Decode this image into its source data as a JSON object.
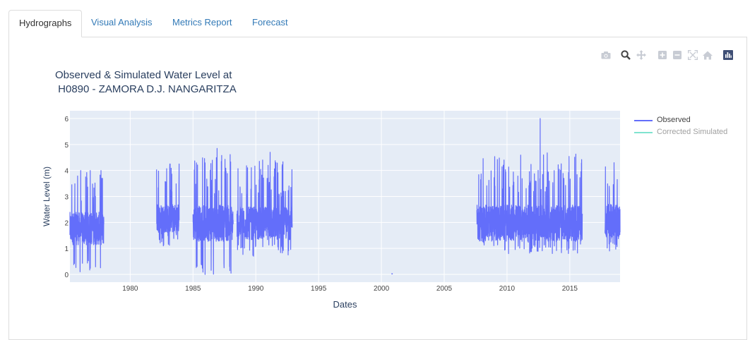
{
  "tabs": [
    {
      "label": "Hydrographs",
      "active": true
    },
    {
      "label": "Visual Analysis",
      "active": false
    },
    {
      "label": "Metrics Report",
      "active": false
    },
    {
      "label": "Forecast",
      "active": false
    }
  ],
  "modebar": [
    "camera-icon",
    "zoom-icon",
    "pan-icon",
    "zoom-in-icon",
    "zoom-out-icon",
    "autoscale-icon",
    "reset-axes-icon",
    "plotly-logo-icon"
  ],
  "colors": {
    "observed": "#636efa",
    "corrected": "#7fe3cf",
    "plot_bg": "#e5ecf6",
    "grid": "#ffffff",
    "title": "#2a3f5f"
  },
  "chart_data": {
    "type": "line",
    "title": "Observed & Simulated Water Level at\n H0890 - ZAMORA D.J. NANGARITZA",
    "xlabel": "Dates",
    "ylabel": "Water Level (m)",
    "xlim": [
      1975.2,
      2019.0
    ],
    "ylim": [
      -0.3,
      6.3
    ],
    "x_ticks": [
      "1980",
      "1985",
      "1990",
      "1995",
      "2000",
      "2005",
      "2010",
      "2015"
    ],
    "y_ticks": [
      "0",
      "1",
      "2",
      "3",
      "4",
      "5",
      "6"
    ],
    "legend_position": "top-right",
    "series": [
      {
        "name": "Observed",
        "segments": [
          {
            "start": 1975.2,
            "end": 1977.9,
            "base": 1.7,
            "spread": 0.9,
            "max": 4.0,
            "min": 0.1
          },
          {
            "start": 1982.1,
            "end": 1983.9,
            "base": 2.1,
            "spread": 0.8,
            "max": 4.25,
            "min": 1.1
          },
          {
            "start": 1985.0,
            "end": 1988.2,
            "base": 1.9,
            "spread": 1.0,
            "max": 4.85,
            "min": 0.0
          },
          {
            "start": 1988.5,
            "end": 1992.9,
            "base": 1.9,
            "spread": 0.9,
            "max": 4.7,
            "min": 0.7
          },
          {
            "start": 2000.8,
            "end": 2000.9,
            "base": 0.02,
            "spread": 0.0,
            "max": 0.05,
            "min": 0.0
          },
          {
            "start": 2007.6,
            "end": 2016.0,
            "base": 1.9,
            "spread": 1.0,
            "max": 6.0,
            "min": 0.8
          },
          {
            "start": 2017.8,
            "end": 2019.0,
            "base": 2.0,
            "spread": 0.9,
            "max": 4.3,
            "min": 0.9
          }
        ]
      },
      {
        "name": "Corrected Simulated",
        "segments": []
      }
    ]
  }
}
